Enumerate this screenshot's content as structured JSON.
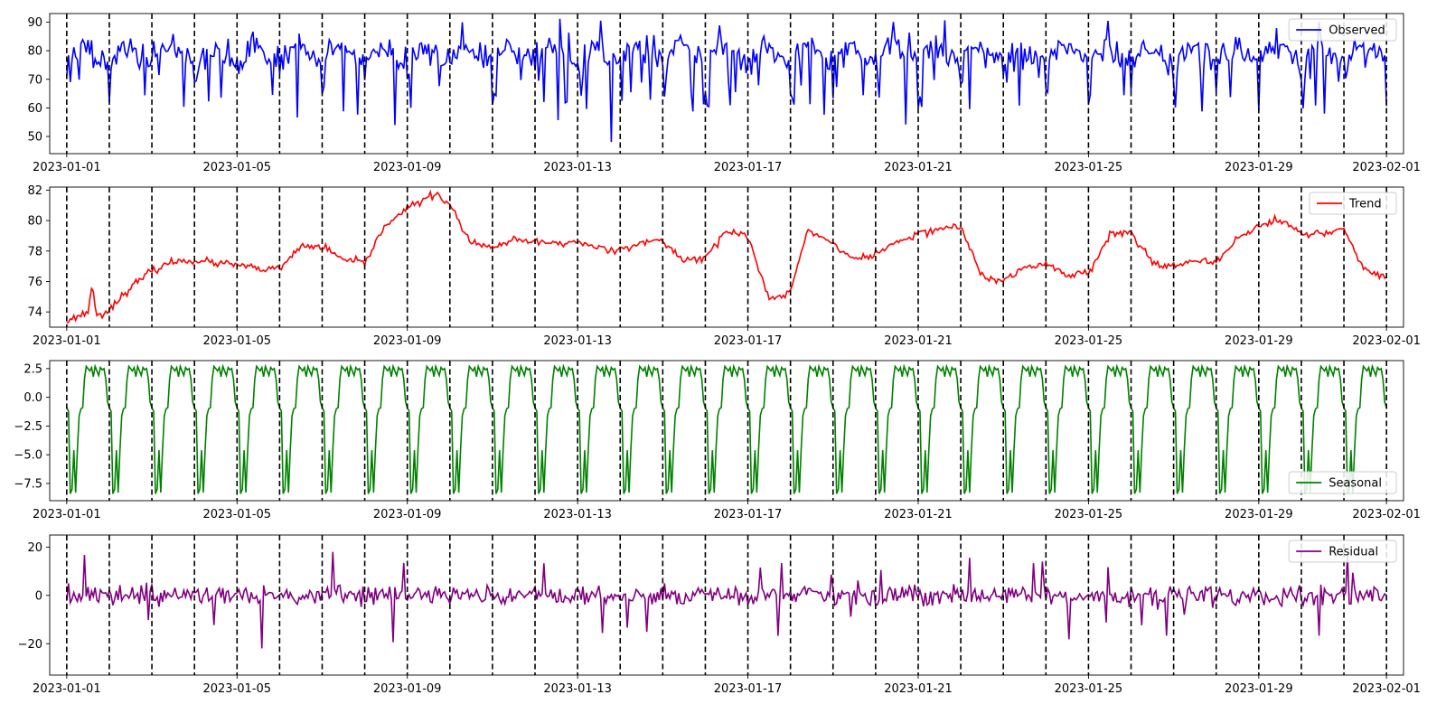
{
  "chart_data": [
    {
      "type": "line",
      "series": [
        {
          "name": "Observed",
          "color": "#0000ff"
        }
      ],
      "ylim": [
        44,
        93
      ],
      "yticks": [
        50,
        60,
        70,
        80,
        90
      ],
      "ytick_labels": [
        "50",
        "60",
        "70",
        "80",
        "90"
      ],
      "legend": "top-right",
      "base": 79,
      "amp": 2.5,
      "noise": 2.2,
      "dip_depth": 14,
      "dip_prob": 0.08,
      "xlim": [
        -0.4,
        31.4
      ],
      "seed": 11
    },
    {
      "type": "line",
      "series": [
        {
          "name": "Trend",
          "color": "#ff0000"
        }
      ],
      "ylim": [
        73,
        82.2
      ],
      "yticks": [
        74,
        76,
        78,
        80,
        82
      ],
      "ytick_labels": [
        "74",
        "76",
        "78",
        "80",
        "82"
      ],
      "legend": "top-right",
      "trend_points": [
        [
          0,
          73.4
        ],
        [
          0.5,
          74.0
        ],
        [
          0.6,
          76.0
        ],
        [
          0.7,
          73.6
        ],
        [
          1,
          74.2
        ],
        [
          1.5,
          75.6
        ],
        [
          2,
          76.7
        ],
        [
          2.5,
          77.3
        ],
        [
          3,
          77.4
        ],
        [
          3.5,
          77.2
        ],
        [
          4,
          77.1
        ],
        [
          4.5,
          76.8
        ],
        [
          5,
          76.8
        ],
        [
          5.5,
          78.3
        ],
        [
          6,
          78.3
        ],
        [
          6.5,
          77.4
        ],
        [
          7,
          77.2
        ],
        [
          7.5,
          79.8
        ],
        [
          8,
          80.8
        ],
        [
          8.7,
          81.8
        ],
        [
          9,
          81.0
        ],
        [
          9.5,
          78.5
        ],
        [
          10,
          78.2
        ],
        [
          10.5,
          78.7
        ],
        [
          11,
          78.6
        ],
        [
          11.5,
          78.5
        ],
        [
          12,
          78.6
        ],
        [
          12.5,
          78.2
        ],
        [
          13,
          78.1
        ],
        [
          13.5,
          78.6
        ],
        [
          14,
          78.6
        ],
        [
          14.5,
          77.4
        ],
        [
          15,
          77.6
        ],
        [
          15.5,
          79.3
        ],
        [
          16,
          79.0
        ],
        [
          16.3,
          76.4
        ],
        [
          16.5,
          74.8
        ],
        [
          17,
          75.3
        ],
        [
          17.4,
          79.4
        ],
        [
          18,
          78.5
        ],
        [
          18.5,
          77.4
        ],
        [
          19,
          77.8
        ],
        [
          19.5,
          78.6
        ],
        [
          20,
          79.1
        ],
        [
          20.5,
          79.5
        ],
        [
          21,
          79.6
        ],
        [
          21.5,
          76.3
        ],
        [
          22,
          76.0
        ],
        [
          22.5,
          76.9
        ],
        [
          23,
          77.2
        ],
        [
          23.5,
          76.4
        ],
        [
          24,
          76.6
        ],
        [
          24.5,
          79.1
        ],
        [
          25,
          79.2
        ],
        [
          25.5,
          77.3
        ],
        [
          26,
          77.0
        ],
        [
          26.5,
          77.3
        ],
        [
          27,
          77.2
        ],
        [
          27.5,
          78.9
        ],
        [
          28,
          79.6
        ],
        [
          28.5,
          80.1
        ],
        [
          29,
          79.1
        ],
        [
          29.5,
          79.2
        ],
        [
          30,
          79.4
        ],
        [
          30.5,
          76.7
        ],
        [
          31,
          76.3
        ],
        [
          31.5,
          75.3
        ],
        [
          32,
          74.4
        ]
      ],
      "xlim": [
        -0.4,
        31.4
      ],
      "seed": 23
    },
    {
      "type": "line",
      "series": [
        {
          "name": "Seasonal",
          "color": "#008000"
        }
      ],
      "ylim": [
        -9.0,
        3.2
      ],
      "yticks": [
        -7.5,
        -5.0,
        -2.5,
        0.0,
        2.5
      ],
      "ytick_labels": [
        "−7.5",
        "−5.0",
        "−2.5",
        "0.0",
        "2.5"
      ],
      "legend": "bottom-right",
      "xlim": [
        -0.4,
        31.4
      ],
      "seed": 5
    },
    {
      "type": "line",
      "series": [
        {
          "name": "Residual",
          "color": "#800080"
        }
      ],
      "ylim": [
        -33,
        25
      ],
      "yticks": [
        -20,
        0,
        20
      ],
      "ytick_labels": [
        "−20",
        "0",
        "20"
      ],
      "legend": "top-right",
      "noise": 2.0,
      "spike_prob": 0.06,
      "spike_amp": 16,
      "xlim": [
        -0.4,
        31.4
      ],
      "seed": 37
    }
  ],
  "x_ticks": [
    {
      "day": 0,
      "label": "2023-01-01"
    },
    {
      "day": 4,
      "label": "2023-01-05"
    },
    {
      "day": 8,
      "label": "2023-01-09"
    },
    {
      "day": 12,
      "label": "2023-01-13"
    },
    {
      "day": 16,
      "label": "2023-01-17"
    },
    {
      "day": 20,
      "label": "2023-01-21"
    },
    {
      "day": 24,
      "label": "2023-01-25"
    },
    {
      "day": 28,
      "label": "2023-01-29"
    },
    {
      "day": 31,
      "label": "2023-02-01"
    }
  ],
  "day_boundaries": [
    0,
    1,
    2,
    3,
    4,
    5,
    6,
    7,
    8,
    9,
    10,
    11,
    12,
    13,
    14,
    15,
    16,
    17,
    18,
    19,
    20,
    21,
    22,
    23,
    24,
    25,
    26,
    27,
    28,
    29,
    30,
    31
  ],
  "samples_per_day": 24,
  "days": 31,
  "seasonal_profile": [
    -0.9,
    -1.2,
    -8.4,
    -8.0,
    -4.6,
    -8.3,
    -4.6,
    -1.6,
    -1.0,
    -0.9,
    1.6,
    2.7,
    2.5,
    2.3,
    2.6,
    1.8,
    2.7,
    2.3,
    1.9,
    2.6,
    2.4,
    2.5,
    1.6,
    -0.4
  ]
}
